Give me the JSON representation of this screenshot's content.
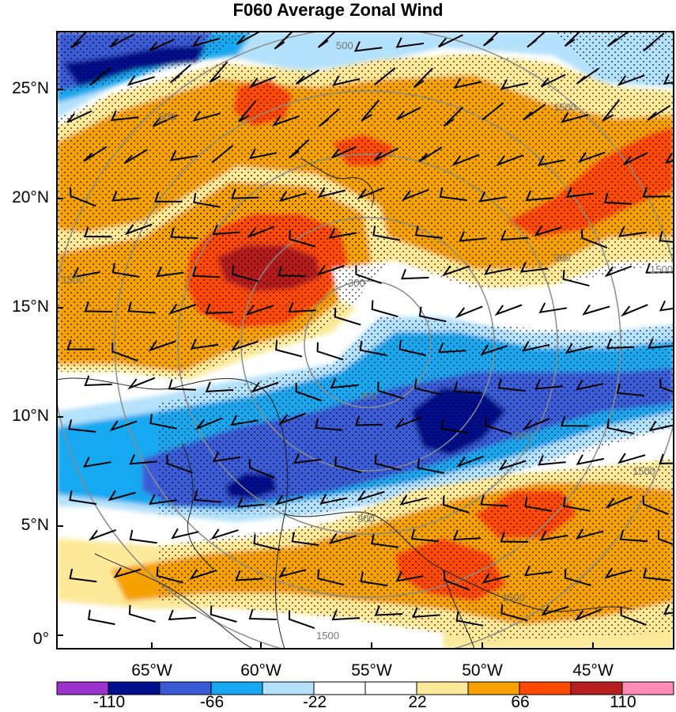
{
  "title": "F060 Average Zonal Wind",
  "lat_labels": [
    "25°N",
    "20°N",
    "15°N",
    "10°N",
    "5°N",
    "0°"
  ],
  "lon_labels": [
    "65°W",
    "60°W",
    "55°W",
    "50°W",
    "45°W"
  ],
  "colorbar": {
    "labels": [
      "-110",
      "-66",
      "-22",
      "22",
      "66",
      "110"
    ],
    "colors": [
      "#9a32cd",
      "#000f8c",
      "#3b5bd6",
      "#16a8f0",
      "#b4e1fb",
      "#ffffff",
      "#ffffff",
      "#fcea9a",
      "#f5a100",
      "#fe4a00",
      "#b41e1e",
      "#ff8cb4"
    ]
  },
  "range_labels": [
    "500",
    "1500",
    "300",
    "900",
    "1500",
    "500",
    "300",
    "900",
    "1500",
    "900",
    "1500",
    "1500",
    "1500"
  ],
  "palette": {
    "strong_easterly": "#000f8c",
    "easterly": "#3b5bd6",
    "weak_easterly": "#16a8f0",
    "light_easterly": "#b4e1fb",
    "calm": "#ffffff",
    "light_westerly": "#fcea9a",
    "westerly": "#f5a100",
    "strong_westerly": "#fe4a00",
    "very_strong_westerly": "#b41e1e"
  }
}
